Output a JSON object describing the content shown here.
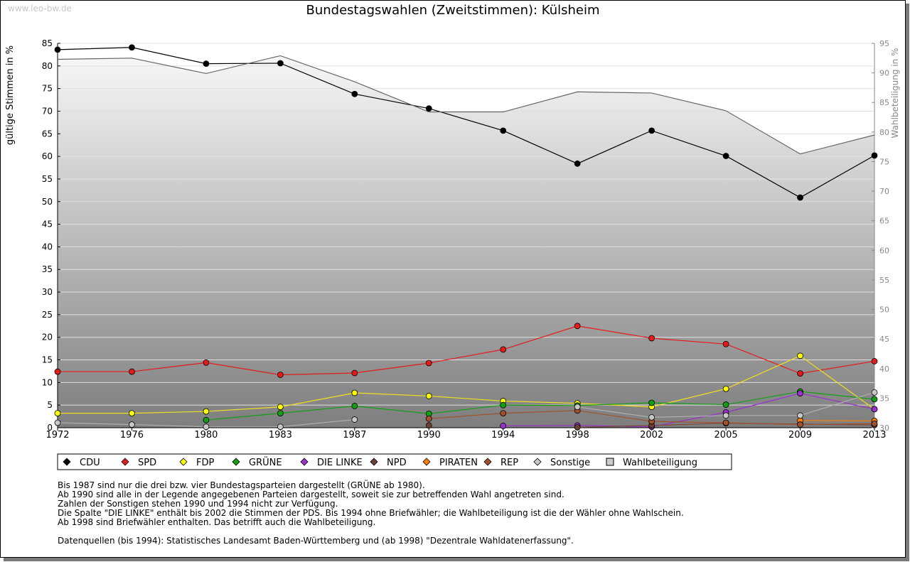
{
  "watermark": "www.leo-bw.de",
  "chart_data": {
    "type": "line",
    "title": "Bundestagswahlen (Zweitstimmen): Külsheim",
    "ylabel": "gültige Stimmen in %",
    "y2label": "Wahlbeteiligung in %",
    "ylim": [
      0,
      85
    ],
    "y2lim": [
      30,
      95
    ],
    "x": [
      "1972",
      "1976",
      "1980",
      "1983",
      "1987",
      "1990",
      "1994",
      "1998",
      "2002",
      "2005",
      "2009",
      "2013"
    ],
    "yticks": [
      "0",
      "5",
      "10",
      "15",
      "20",
      "25",
      "30",
      "35",
      "40",
      "45",
      "50",
      "55",
      "60",
      "65",
      "70",
      "75",
      "80",
      "85"
    ],
    "y2ticks": [
      "30",
      "35",
      "40",
      "45",
      "50",
      "55",
      "60",
      "65",
      "70",
      "75",
      "80",
      "85",
      "90",
      "95"
    ],
    "grid": true,
    "legend_position": "bottom",
    "series": [
      {
        "name": "CDU",
        "color": "#000000",
        "marker": "#000000",
        "values": [
          83.6,
          84.1,
          80.5,
          80.6,
          73.8,
          70.6,
          65.7,
          58.4,
          65.7,
          60.1,
          50.9,
          60.2
        ]
      },
      {
        "name": "SPD",
        "color": "#e41b1b",
        "marker": "#e41b1b",
        "values": [
          12.4,
          12.4,
          14.4,
          11.7,
          12.1,
          14.3,
          17.3,
          22.5,
          19.8,
          18.5,
          12.0,
          14.7
        ]
      },
      {
        "name": "FDP",
        "color": "#f0e020",
        "marker": "#ffff00",
        "values": [
          3.2,
          3.2,
          3.6,
          4.6,
          7.7,
          7.0,
          5.9,
          5.4,
          4.6,
          8.6,
          15.9,
          4.1
        ]
      },
      {
        "name": "GRÜNE",
        "color": "#12a012",
        "marker": "#12a012",
        "values": [
          null,
          null,
          1.7,
          3.2,
          4.8,
          3.1,
          5.0,
          4.9,
          5.5,
          5.1,
          8.0,
          6.3
        ]
      },
      {
        "name": "DIE LINKE",
        "color": "#9932cc",
        "marker": "#9932cc",
        "values": [
          null,
          null,
          null,
          null,
          null,
          null,
          0.4,
          0.5,
          0.2,
          3.4,
          7.6,
          4.1
        ]
      },
      {
        "name": "NPD",
        "color": "#7a4a3a",
        "marker": "#6b4030",
        "values": [
          null,
          null,
          null,
          null,
          null,
          0.5,
          null,
          0.1,
          0.5,
          1.0,
          0.8,
          0.6
        ]
      },
      {
        "name": "PIRATEN",
        "color": "#ff8000",
        "marker": "#ff8000",
        "values": [
          null,
          null,
          null,
          null,
          null,
          null,
          null,
          null,
          null,
          null,
          1.6,
          1.5
        ]
      },
      {
        "name": "REP",
        "color": "#a0522d",
        "marker": "#a0522d",
        "values": [
          null,
          null,
          null,
          null,
          null,
          2.0,
          3.2,
          3.8,
          1.4,
          1.1,
          0.7,
          0.9
        ]
      },
      {
        "name": "Sonstige",
        "color": "#b0b0b0",
        "marker": "#c8c8c8",
        "values": [
          1.1,
          0.7,
          0.2,
          0.2,
          1.8,
          null,
          null,
          4.6,
          2.3,
          2.7,
          2.7,
          7.8
        ]
      },
      {
        "name": "Wahlbeteiligung",
        "axis": "right",
        "color": "#666666",
        "marker": "#cccccc",
        "values": [
          92.3,
          92.5,
          89.9,
          92.9,
          88.5,
          83.4,
          83.4,
          86.8,
          86.6,
          83.6,
          76.3,
          79.5
        ]
      }
    ]
  },
  "notes": [
    "Bis 1987 sind nur die drei bzw. vier Bundestagsparteien dargestellt (GRÜNE ab 1980).",
    "Ab 1990 sind alle in der Legende angegebenen Parteien dargestellt, soweit sie zur betreffenden Wahl angetreten sind.",
    "Zahlen der Sonstigen stehen 1990 und 1994 nicht zur Verfügung.",
    "Die Spalte \"DIE LINKE\" enthält bis 2002 die Stimmen der PDS. Bis 1994 ohne Briefwähler; die Wahlbeteiligung ist die der Wähler ohne Wahlschein.",
    "Ab 1998 sind Briefwähler enthalten. Das betrifft auch die Wahlbeteiligung."
  ],
  "sources": "Datenquellen (bis 1994): Statistisches Landesamt Baden-Württemberg und (ab 1998) \"Dezentrale Wahldatenerfassung\"."
}
